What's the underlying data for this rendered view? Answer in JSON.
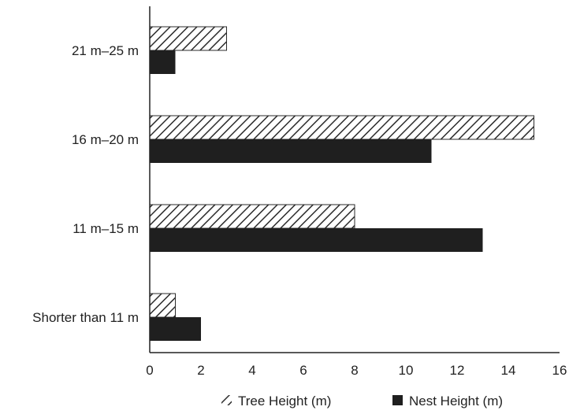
{
  "chart_data": {
    "type": "bar",
    "orientation": "horizontal",
    "categories": [
      "21 m–25 m",
      "16 m–20 m",
      "11 m–15 m",
      "Shorter than 11 m"
    ],
    "series": [
      {
        "name": "Tree Height (m)",
        "values": [
          3,
          15,
          8,
          1
        ],
        "pattern": "diagonal-hatch",
        "color": "#2b2b2b"
      },
      {
        "name": "Nest Height (m)",
        "values": [
          1,
          11,
          13,
          2
        ],
        "pattern": "solid",
        "color": "#1f1f1f"
      }
    ],
    "xlim": [
      0,
      16
    ],
    "xticks": [
      "0",
      "2",
      "4",
      "6",
      "8",
      "10",
      "12",
      "14",
      "16"
    ],
    "title": "",
    "xlabel": "",
    "ylabel": "",
    "grid": false,
    "legend_position": "bottom"
  }
}
